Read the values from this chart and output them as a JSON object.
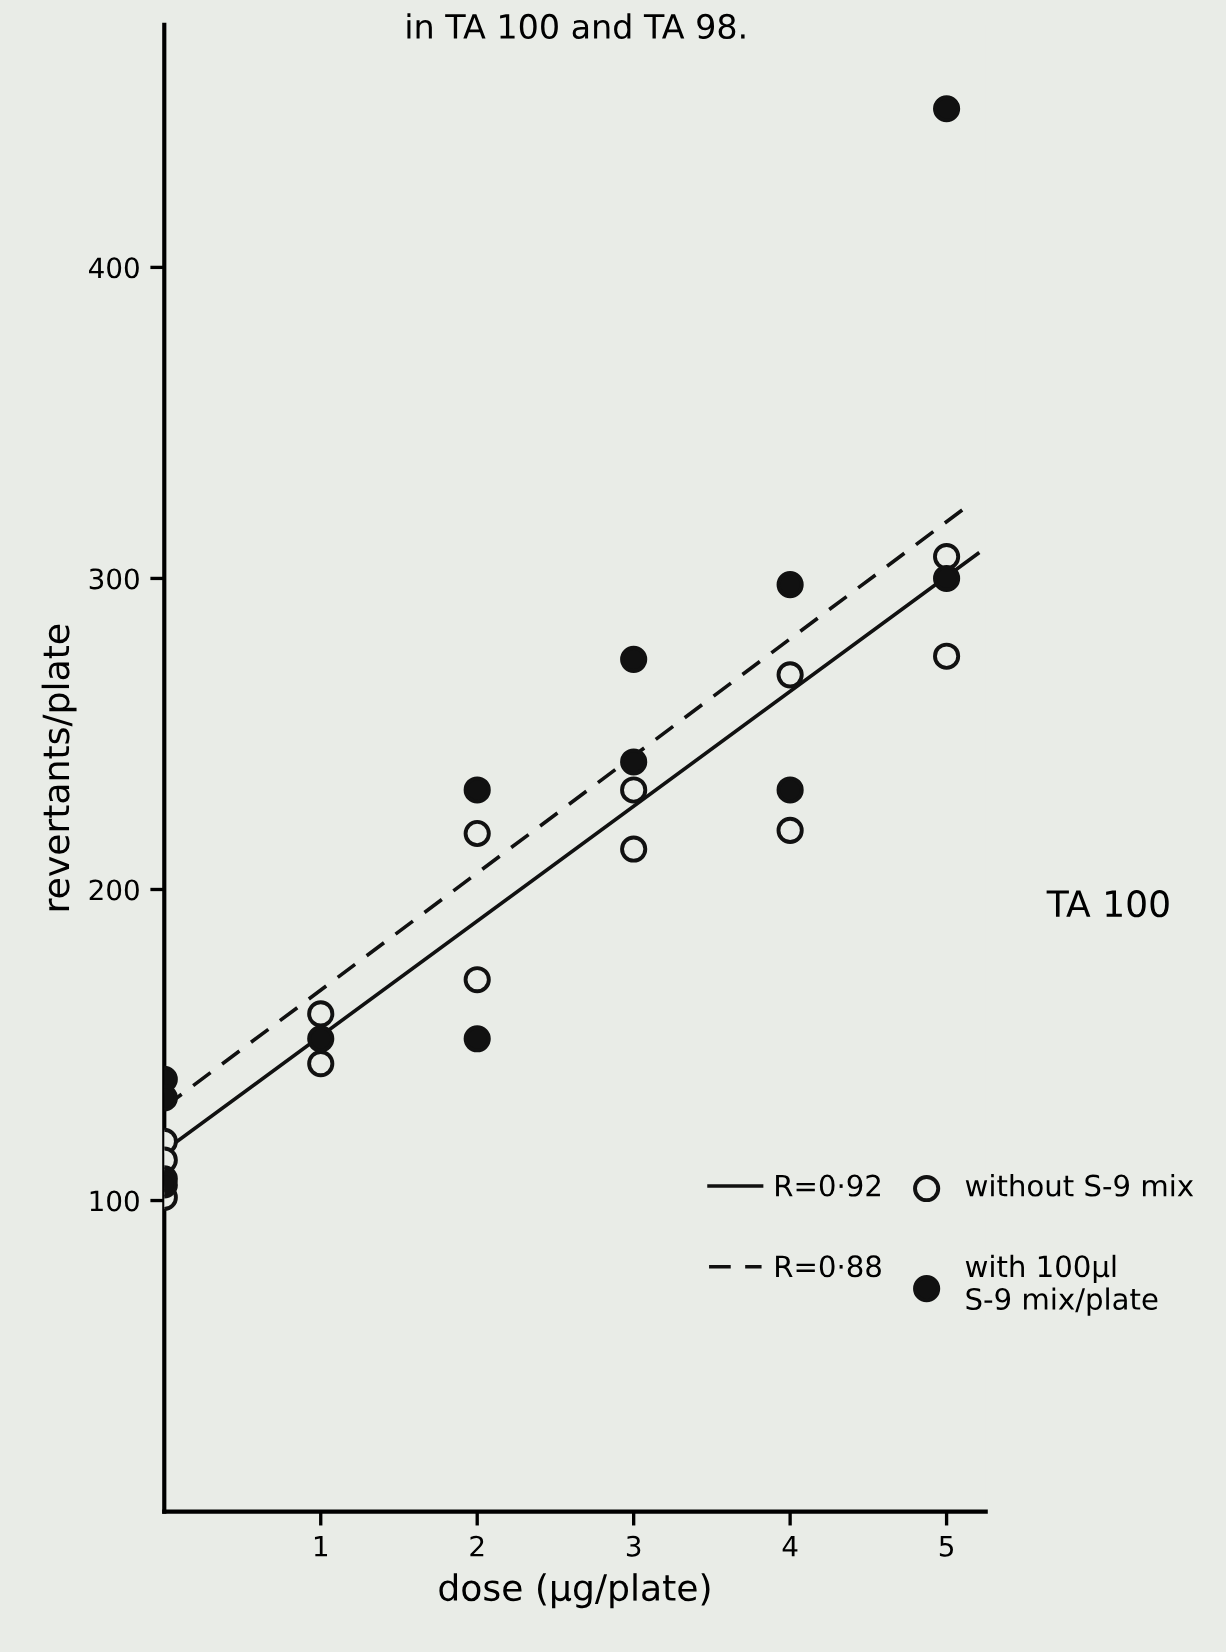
{
  "chart_data": {
    "type": "scatter",
    "title": "in TA 100 and TA 98.",
    "xlabel": "dose (μg/plate)",
    "ylabel": "revertants/plate",
    "xlim": [
      0,
      5.25
    ],
    "ylim": [
      0,
      478
    ],
    "xticks": [
      1,
      2,
      3,
      4,
      5
    ],
    "yticks": [
      100,
      200,
      300,
      400
    ],
    "grid": false,
    "legend": "right",
    "series": [
      {
        "name": "without S-9 mix",
        "marker": "circle",
        "color": "#e9ece7",
        "x": [
          0,
          0,
          0,
          1,
          1,
          2,
          2,
          3,
          3,
          4,
          4,
          5,
          5
        ],
        "values": [
          119,
          113,
          101,
          160,
          144,
          218,
          171,
          232,
          213,
          269,
          219,
          307,
          275
        ]
      },
      {
        "name": "with 100μl\nS-9 mix/plate",
        "marker": "circle",
        "color": "#111111",
        "x": [
          0,
          0,
          0,
          0,
          1,
          2,
          2,
          3,
          3,
          4,
          4,
          5,
          5
        ],
        "values": [
          139,
          133,
          107,
          105,
          152,
          232,
          152,
          274,
          241,
          298,
          232,
          451,
          300
        ]
      },
      {
        "name": "R=0·92",
        "type": "line",
        "line_style": "solid",
        "color": "#111111",
        "x": [
          0,
          5.2
        ],
        "values": [
          116,
          308
        ]
      },
      {
        "name": "R=0·88",
        "type": "line",
        "line_style": "dashed",
        "color": "#111111",
        "x": [
          0,
          5.1
        ],
        "values": [
          130,
          322
        ]
      }
    ],
    "annotations": [
      "TA 100"
    ]
  }
}
